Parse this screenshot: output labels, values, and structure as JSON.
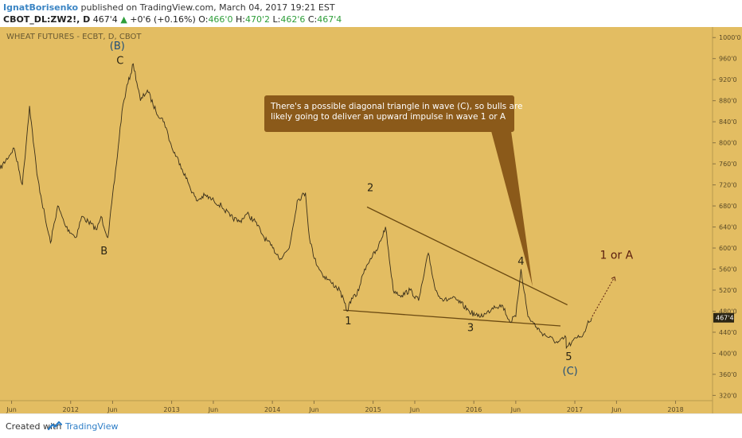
{
  "header": {
    "author": "IgnatBorisenko",
    "published_text": "published on TradingView.com, March 04, 2017 19:21 EST",
    "symbol": "CBOT_DL:ZW2!, D",
    "last": "467'4",
    "change_arrow": "▲",
    "change": "+0'6 (+0.16%)",
    "open_label": "O:",
    "open": "466'0",
    "high_label": "H:",
    "high": "470'2",
    "low_label": "L:",
    "low": "462'6",
    "close_label": "C:",
    "close": "467'4"
  },
  "footer": {
    "created_with": "Created with",
    "brand": "TradingView"
  },
  "colors": {
    "background": "#e3bd62",
    "candles": "#3a2f1a",
    "trendline": "#6b4a12",
    "callout": "#8b5a1a",
    "callout_text": "#ffffff",
    "wave_label": "#2b2514",
    "wave_label_blue": "#1f4e79",
    "price_tag": "#2b2514",
    "target_label": "#5a1d0e"
  },
  "chart_data": {
    "type": "line",
    "title": "WHEAT FUTURES - ECBT, D, CBOT",
    "y_ticks": [
      "1000'0",
      "960'0",
      "920'0",
      "880'0",
      "840'0",
      "800'0",
      "760'0",
      "720'0",
      "680'0",
      "640'0",
      "600'0",
      "560'0",
      "520'0",
      "480'0",
      "440'0",
      "400'0",
      "360'0",
      "320'0"
    ],
    "y_tick_values": [
      1000,
      960,
      920,
      880,
      840,
      800,
      760,
      720,
      680,
      640,
      600,
      560,
      520,
      480,
      440,
      400,
      360,
      320
    ],
    "x_ticks": [
      "Jun",
      "2012",
      "Jun",
      "2013",
      "Jun",
      "2014",
      "Jun",
      "2015",
      "Jun",
      "2016",
      "Jun",
      "2017",
      "Jun",
      "2018"
    ],
    "x_tick_values": [
      "2011-06-01",
      "2012-01-01",
      "2012-06-01",
      "2013-01-01",
      "2013-06-01",
      "2014-01-01",
      "2014-06-01",
      "2015-01-01",
      "2015-06-01",
      "2016-01-01",
      "2016-06-01",
      "2017-01-01",
      "2017-06-01",
      "2018-01-01"
    ],
    "ylim": [
      310,
      1020
    ],
    "xlim": [
      "2011-04-20",
      "2018-05-15"
    ],
    "last_price": 467.5,
    "last_price_label": "467'4",
    "series": [
      {
        "name": "",
        "x": [
          "2011-04-20",
          "2011-06-10",
          "2011-07-10",
          "2011-08-05",
          "2011-09-01",
          "2011-10-03",
          "2011-10-20",
          "2011-11-15",
          "2011-12-15",
          "2012-01-20",
          "2012-02-10",
          "2012-03-05",
          "2012-04-05",
          "2012-04-20",
          "2012-05-15",
          "2012-06-15",
          "2012-07-05",
          "2012-07-20",
          "2012-08-15",
          "2012-09-10",
          "2012-10-05",
          "2012-11-05",
          "2012-12-05",
          "2013-01-02",
          "2013-02-01",
          "2013-03-01",
          "2013-04-01",
          "2013-05-01",
          "2013-06-03",
          "2013-07-01",
          "2013-08-01",
          "2013-09-03",
          "2013-10-01",
          "2013-10-31",
          "2013-12-02",
          "2014-01-02",
          "2014-01-31",
          "2014-03-03",
          "2014-04-01",
          "2014-05-01",
          "2014-05-15",
          "2014-06-02",
          "2014-07-01",
          "2014-08-01",
          "2014-09-02",
          "2014-09-29",
          "2014-10-15",
          "2014-11-03",
          "2014-12-01",
          "2014-12-22",
          "2015-01-15",
          "2015-02-15",
          "2015-03-15",
          "2015-04-15",
          "2015-05-15",
          "2015-06-15",
          "2015-07-01",
          "2015-07-20",
          "2015-08-15",
          "2015-09-15",
          "2015-10-15",
          "2015-11-15",
          "2015-12-15",
          "2016-01-15",
          "2016-02-15",
          "2016-03-15",
          "2016-04-15",
          "2016-05-10",
          "2016-06-01",
          "2016-06-20",
          "2016-07-15",
          "2016-08-15",
          "2016-08-31",
          "2016-09-30",
          "2016-10-31",
          "2016-11-30",
          "2016-12-01",
          "2016-12-20",
          "2017-01-10",
          "2017-01-31",
          "2017-02-15",
          "2017-03-03"
        ],
        "y": [
          750,
          790,
          720,
          870,
          740,
          650,
          610,
          680,
          640,
          620,
          660,
          650,
          635,
          660,
          620,
          760,
          860,
          900,
          950,
          880,
          900,
          860,
          840,
          790,
          760,
          725,
          690,
          700,
          690,
          680,
          660,
          650,
          665,
          650,
          620,
          600,
          580,
          600,
          690,
          705,
          620,
          580,
          550,
          535,
          520,
          480,
          505,
          510,
          560,
          580,
          595,
          640,
          520,
          510,
          520,
          500,
          540,
          590,
          520,
          500,
          505,
          495,
          480,
          470,
          475,
          490,
          490,
          460,
          470,
          560,
          470,
          450,
          440,
          430,
          420,
          430,
          410,
          420,
          430,
          435,
          455,
          467.5
        ]
      }
    ],
    "wave_labels": [
      {
        "text": "(B)",
        "x": "2012-06-18",
        "y": 978,
        "color": "blue"
      },
      {
        "text": "C",
        "x": "2012-06-28",
        "y": 950,
        "color": "dark"
      },
      {
        "text": "B",
        "x": "2012-05-01",
        "y": 588,
        "color": "dark"
      },
      {
        "text": "1",
        "x": "2014-10-03",
        "y": 455,
        "color": "dark"
      },
      {
        "text": "2",
        "x": "2014-12-22",
        "y": 708,
        "color": "dark"
      },
      {
        "text": "3",
        "x": "2015-12-20",
        "y": 442,
        "color": "dark"
      },
      {
        "text": "4",
        "x": "2016-06-20",
        "y": 568,
        "color": "dark"
      },
      {
        "text": "5",
        "x": "2016-12-10",
        "y": 387,
        "color": "dark"
      },
      {
        "text": "(C)",
        "x": "2016-12-15",
        "y": 360,
        "color": "blue"
      },
      {
        "text": "1 or A",
        "x": "2017-06-01",
        "y": 580,
        "color": "red"
      }
    ],
    "trendlines": [
      {
        "x1": "2014-12-10",
        "y1": 678,
        "x2": "2016-12-05",
        "y2": 492
      },
      {
        "x1": "2014-09-15",
        "y1": 482,
        "x2": "2016-11-10",
        "y2": 452
      }
    ],
    "projection": {
      "x1": "2017-03-05",
      "y1": 470,
      "x2": "2017-05-25",
      "y2": 545
    },
    "annotation": {
      "lines": [
        "There's a possible diagonal triangle in wave (C), so bulls are",
        "likely going to deliver an upward impulse in wave 1 or A"
      ],
      "pointer": {
        "x": "2016-08-01",
        "y": 527
      }
    }
  }
}
